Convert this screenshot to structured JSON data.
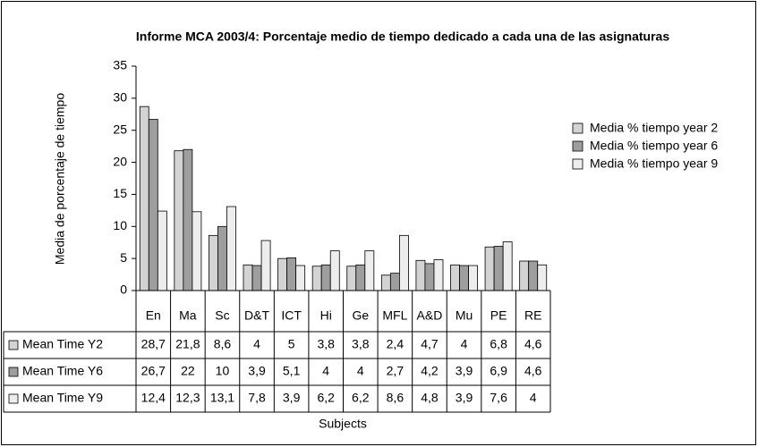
{
  "chart_data": {
    "type": "bar",
    "title": "Informe MCA 2003/4: Porcentaje medio de tiempo dedicado a cada una de las asignaturas",
    "y_label": "Media de porcentaje de tiempo",
    "x_label": "Subjects",
    "categories": [
      "En",
      "Ma",
      "Sc",
      "D&T",
      "ICT",
      "Hi",
      "Ge",
      "MFL",
      "A&D",
      "Mu",
      "PE",
      "RE"
    ],
    "series": [
      {
        "name": "Media % tiempo year 2",
        "table_label": "Mean Time Y2",
        "color": "#d3d3d3",
        "values": [
          28.7,
          21.8,
          8.6,
          4,
          5,
          3.8,
          3.8,
          2.4,
          4.7,
          4,
          6.8,
          4.6
        ],
        "value_labels": [
          "28,7",
          "21,8",
          "8,6",
          "4",
          "5",
          "3,8",
          "3,8",
          "2,4",
          "4,7",
          "4",
          "6,8",
          "4,6"
        ]
      },
      {
        "name": "Media % tiempo year 6",
        "table_label": "Mean Time Y6",
        "color": "#9e9e9e",
        "values": [
          26.7,
          22,
          10,
          3.9,
          5.1,
          4,
          4,
          2.7,
          4.2,
          3.9,
          6.9,
          4.6
        ],
        "value_labels": [
          "26,7",
          "22",
          "10",
          "3,9",
          "5,1",
          "4",
          "4",
          "2,7",
          "4,2",
          "3,9",
          "6,9",
          "4,6"
        ]
      },
      {
        "name": "Media % tiempo year 9",
        "table_label": "Mean Time Y9",
        "color": "#ededed",
        "values": [
          12.4,
          12.3,
          13.1,
          7.8,
          3.9,
          6.2,
          6.2,
          8.6,
          4.8,
          3.9,
          7.6,
          4
        ],
        "value_labels": [
          "12,4",
          "12,3",
          "13,1",
          "7,8",
          "3,9",
          "6,2",
          "6,2",
          "8,6",
          "4,8",
          "3,9",
          "7,6",
          "4"
        ]
      }
    ],
    "ylim": [
      0,
      35
    ],
    "yticks": [
      0,
      5,
      10,
      15,
      20,
      25,
      30,
      35
    ],
    "grid": false,
    "legend": "right"
  }
}
